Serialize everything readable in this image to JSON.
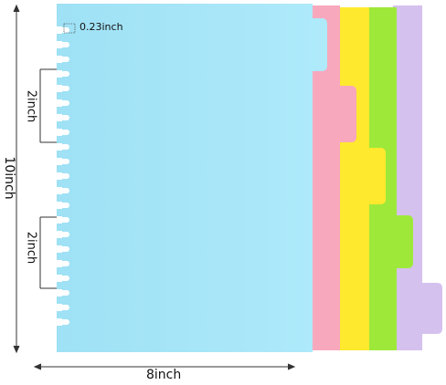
{
  "dimensions": {
    "total_height": "10inch",
    "hole_span_top": "2inch",
    "hole_span_bottom": "2inch",
    "total_width": "8inch",
    "hole_size": "0.23inch"
  },
  "colors": {
    "blue": "#a7e6f7",
    "pink": "#f7a8bd",
    "yellow": "#ffe92e",
    "green": "#9ee83a",
    "purple": "#d5c1ee"
  },
  "divider_count": 5
}
